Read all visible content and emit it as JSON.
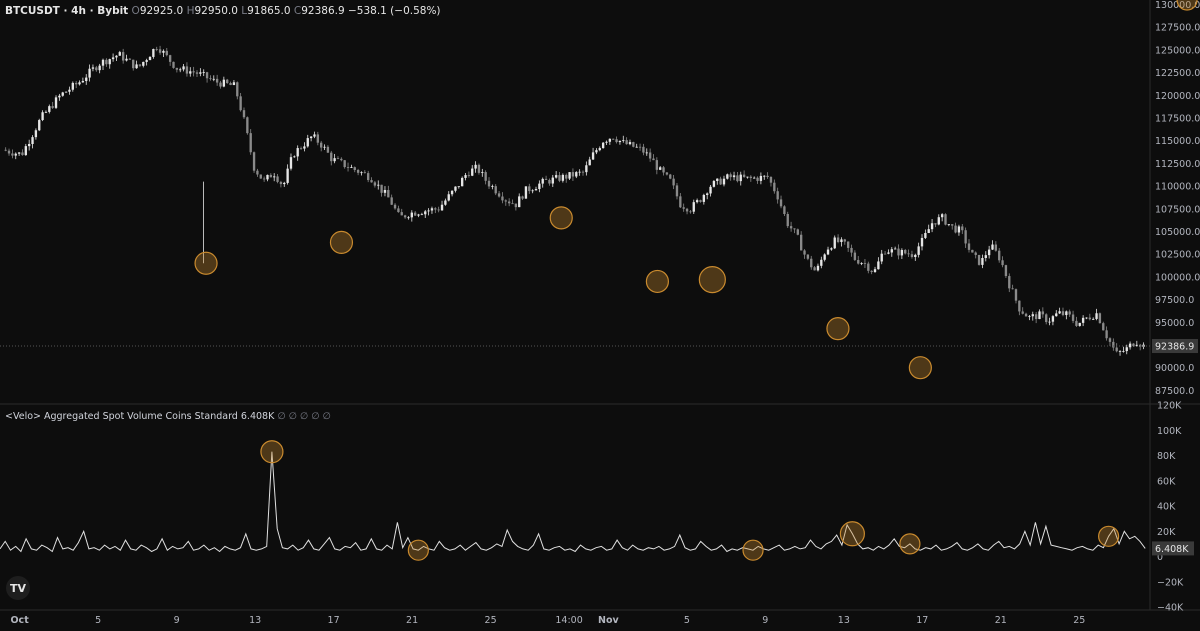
{
  "legend": {
    "symbol": "BTCUSDT · 4h · Bybit",
    "open_label": "O",
    "open": "92925.0",
    "high_label": "H",
    "high": "92950.0",
    "low_label": "L",
    "low": "91865.0",
    "close_label": "C",
    "close": "92386.9",
    "change": "−538.1 (−0.58%)"
  },
  "volume_legend": {
    "title": "<Velo> Aggregated Spot Volume Coins Standard",
    "value": "6.408K",
    "icons": "∅ ∅ ∅ ∅ ∅"
  },
  "logo_text": "TV",
  "last_price_tag": "92386.9",
  "last_volume_tag": "6.408K",
  "colors": {
    "background": "#0d0d0d",
    "candle": "#e6e6e6",
    "highlight": "#c98a2e",
    "grid_line": "#2a2a2a"
  },
  "chart_data": [
    {
      "type": "candlestick",
      "title": "BTCUSDT · 4h · Bybit",
      "y_ticks": [
        "130000.0",
        "127500.0",
        "125000.0",
        "122500.0",
        "120000.0",
        "117500.0",
        "115000.0",
        "112500.0",
        "110000.0",
        "107500.0",
        "105000.0",
        "102500.0",
        "100000.0",
        "97500.0",
        "95000.0",
        "92500.0",
        "90000.0",
        "87500.0"
      ],
      "ylim": [
        86000,
        130500
      ],
      "x_ticks": [
        "Oct",
        "5",
        "9",
        "13",
        "17",
        "21",
        "25",
        "14:00",
        "Nov",
        "5",
        "9",
        "13",
        "17",
        "21",
        "25"
      ],
      "price_path": [
        [
          0,
          114000
        ],
        [
          2,
          113500
        ],
        [
          4,
          117500
        ],
        [
          6,
          120000
        ],
        [
          8,
          121500
        ],
        [
          10,
          123500
        ],
        [
          12,
          124500
        ],
        [
          14,
          123000
        ],
        [
          16,
          125500
        ],
        [
          17,
          124200
        ],
        [
          18,
          123000
        ],
        [
          20,
          122500
        ],
        [
          22,
          121500
        ],
        [
          24,
          121000
        ],
        [
          25,
          117000
        ],
        [
          26,
          112000
        ],
        [
          27,
          110500
        ],
        [
          28,
          111500
        ],
        [
          29,
          110000
        ],
        [
          30,
          113500
        ],
        [
          32,
          115500
        ],
        [
          33,
          114500
        ],
        [
          34,
          113000
        ],
        [
          36,
          112000
        ],
        [
          38,
          111000
        ],
        [
          40,
          108500
        ],
        [
          41,
          106500
        ],
        [
          42,
          107000
        ],
        [
          43,
          107200
        ],
        [
          45,
          107500
        ],
        [
          47,
          110000
        ],
        [
          48,
          111500
        ],
        [
          49,
          112000
        ],
        [
          50,
          110500
        ],
        [
          51,
          109500
        ],
        [
          52,
          108500
        ],
        [
          53,
          108000
        ],
        [
          54,
          109500
        ],
        [
          56,
          110500
        ],
        [
          58,
          111000
        ],
        [
          60,
          111500
        ],
        [
          61,
          113500
        ],
        [
          62,
          115000
        ],
        [
          63,
          115500
        ],
        [
          64,
          114800
        ],
        [
          66,
          114000
        ],
        [
          67,
          113000
        ],
        [
          68,
          111500
        ],
        [
          69,
          110500
        ],
        [
          70,
          108000
        ],
        [
          71,
          107500
        ],
        [
          72,
          108500
        ],
        [
          73,
          110000
        ],
        [
          74,
          110500
        ],
        [
          75,
          111000
        ],
        [
          77,
          110800
        ],
        [
          79,
          111000
        ],
        [
          80,
          109000
        ],
        [
          81,
          106000
        ],
        [
          82,
          104500
        ],
        [
          83,
          102000
        ],
        [
          84,
          100500
        ],
        [
          85,
          103000
        ],
        [
          86,
          104000
        ],
        [
          87,
          103500
        ],
        [
          88,
          102000
        ],
        [
          89,
          101500
        ],
        [
          90,
          100500
        ],
        [
          91,
          103000
        ],
        [
          92,
          102800
        ],
        [
          94,
          102500
        ],
        [
          95,
          104000
        ],
        [
          96,
          106000
        ],
        [
          97,
          106500
        ],
        [
          98,
          105500
        ],
        [
          99,
          105000
        ],
        [
          100,
          102500
        ],
        [
          101,
          101500
        ],
        [
          102,
          103500
        ],
        [
          103,
          102000
        ],
        [
          104,
          99000
        ],
        [
          105,
          96500
        ],
        [
          106,
          95500
        ],
        [
          107,
          95800
        ],
        [
          108,
          95200
        ],
        [
          109,
          96000
        ],
        [
          110,
          95800
        ],
        [
          111,
          94800
        ],
        [
          112,
          95500
        ],
        [
          113,
          96000
        ],
        [
          114,
          93500
        ],
        [
          115,
          91500
        ],
        [
          116,
          92000
        ],
        [
          117,
          93000
        ],
        [
          117.8,
          92386.9
        ]
      ],
      "highlight_lows": [
        {
          "day": 10.5,
          "price": 101500
        },
        {
          "day": 17.4,
          "price": 103800
        },
        {
          "day": 28.6,
          "price": 106500
        },
        {
          "day": 33.5,
          "price": 99500
        },
        {
          "day": 36.3,
          "price": 99700
        },
        {
          "day": 42.7,
          "price": 94300
        },
        {
          "day": 46.9,
          "price": 90000
        }
      ],
      "last_price": 92386.9
    },
    {
      "type": "line",
      "title": "<Velo> Aggregated Spot Volume Coins Standard",
      "y_ticks": [
        "120K",
        "100K",
        "80K",
        "60K",
        "40K",
        "20K",
        "0",
        "−20K",
        "−40K"
      ],
      "ylim": [
        -40000,
        120000
      ],
      "values": [
        6000,
        12000,
        5000,
        8000,
        4000,
        14000,
        6000,
        5000,
        9000,
        7000,
        4000,
        15000,
        6000,
        7000,
        5000,
        11000,
        20000,
        6000,
        7000,
        5000,
        9000,
        6000,
        8000,
        5000,
        13000,
        6000,
        5000,
        9000,
        7000,
        4000,
        6000,
        14000,
        5000,
        8000,
        6000,
        7000,
        12000,
        5000,
        6000,
        9000,
        5000,
        7000,
        4000,
        8000,
        6000,
        5000,
        7000,
        18000,
        6000,
        5000,
        6000,
        8000,
        83000,
        22000,
        7000,
        6000,
        9000,
        5000,
        7000,
        13000,
        6000,
        5000,
        10000,
        15000,
        6000,
        5000,
        8000,
        7000,
        11000,
        5000,
        6000,
        14000,
        6000,
        5000,
        9000,
        6000,
        27000,
        7000,
        15000,
        6000,
        5000,
        8000,
        6000,
        5000,
        12000,
        7000,
        5000,
        6000,
        9000,
        5000,
        8000,
        11000,
        6000,
        5000,
        7000,
        10000,
        8000,
        21000,
        12000,
        8000,
        6000,
        5000,
        9000,
        18000,
        6000,
        5000,
        7000,
        8000,
        5000,
        6000,
        4000,
        9000,
        6000,
        5000,
        7000,
        8000,
        5000,
        6000,
        13000,
        7000,
        5000,
        9000,
        6000,
        5000,
        7000,
        6000,
        8000,
        5000,
        6000,
        8000,
        17000,
        7000,
        5000,
        6000,
        12000,
        8000,
        5000,
        6000,
        9000,
        4000,
        6000,
        5000,
        7000,
        6000,
        5000,
        8000,
        6000,
        5000,
        7000,
        9000,
        5000,
        6000,
        8000,
        6000,
        7000,
        13000,
        8000,
        6000,
        10000,
        12000,
        17000,
        9000,
        25000,
        18000,
        10000,
        6000,
        7000,
        5000,
        8000,
        6000,
        9000,
        14000,
        8000,
        7000,
        10000,
        6000,
        5000,
        7000,
        6000,
        9000,
        5000,
        6000,
        8000,
        11000,
        6000,
        5000,
        7000,
        10000,
        6000,
        5000,
        9000,
        12000,
        7000,
        8000,
        6000,
        10000,
        20000,
        9000,
        27000,
        10000,
        24000,
        9000,
        8000,
        7000,
        6000,
        5000,
        7000,
        8000,
        6000,
        5000,
        9000,
        7000,
        16000,
        22000,
        10000,
        20000,
        14000,
        16000,
        12000,
        6408
      ],
      "last_value": 6408,
      "highlight_points": [
        52,
        80,
        144,
        163,
        174,
        212,
        227
      ]
    }
  ]
}
